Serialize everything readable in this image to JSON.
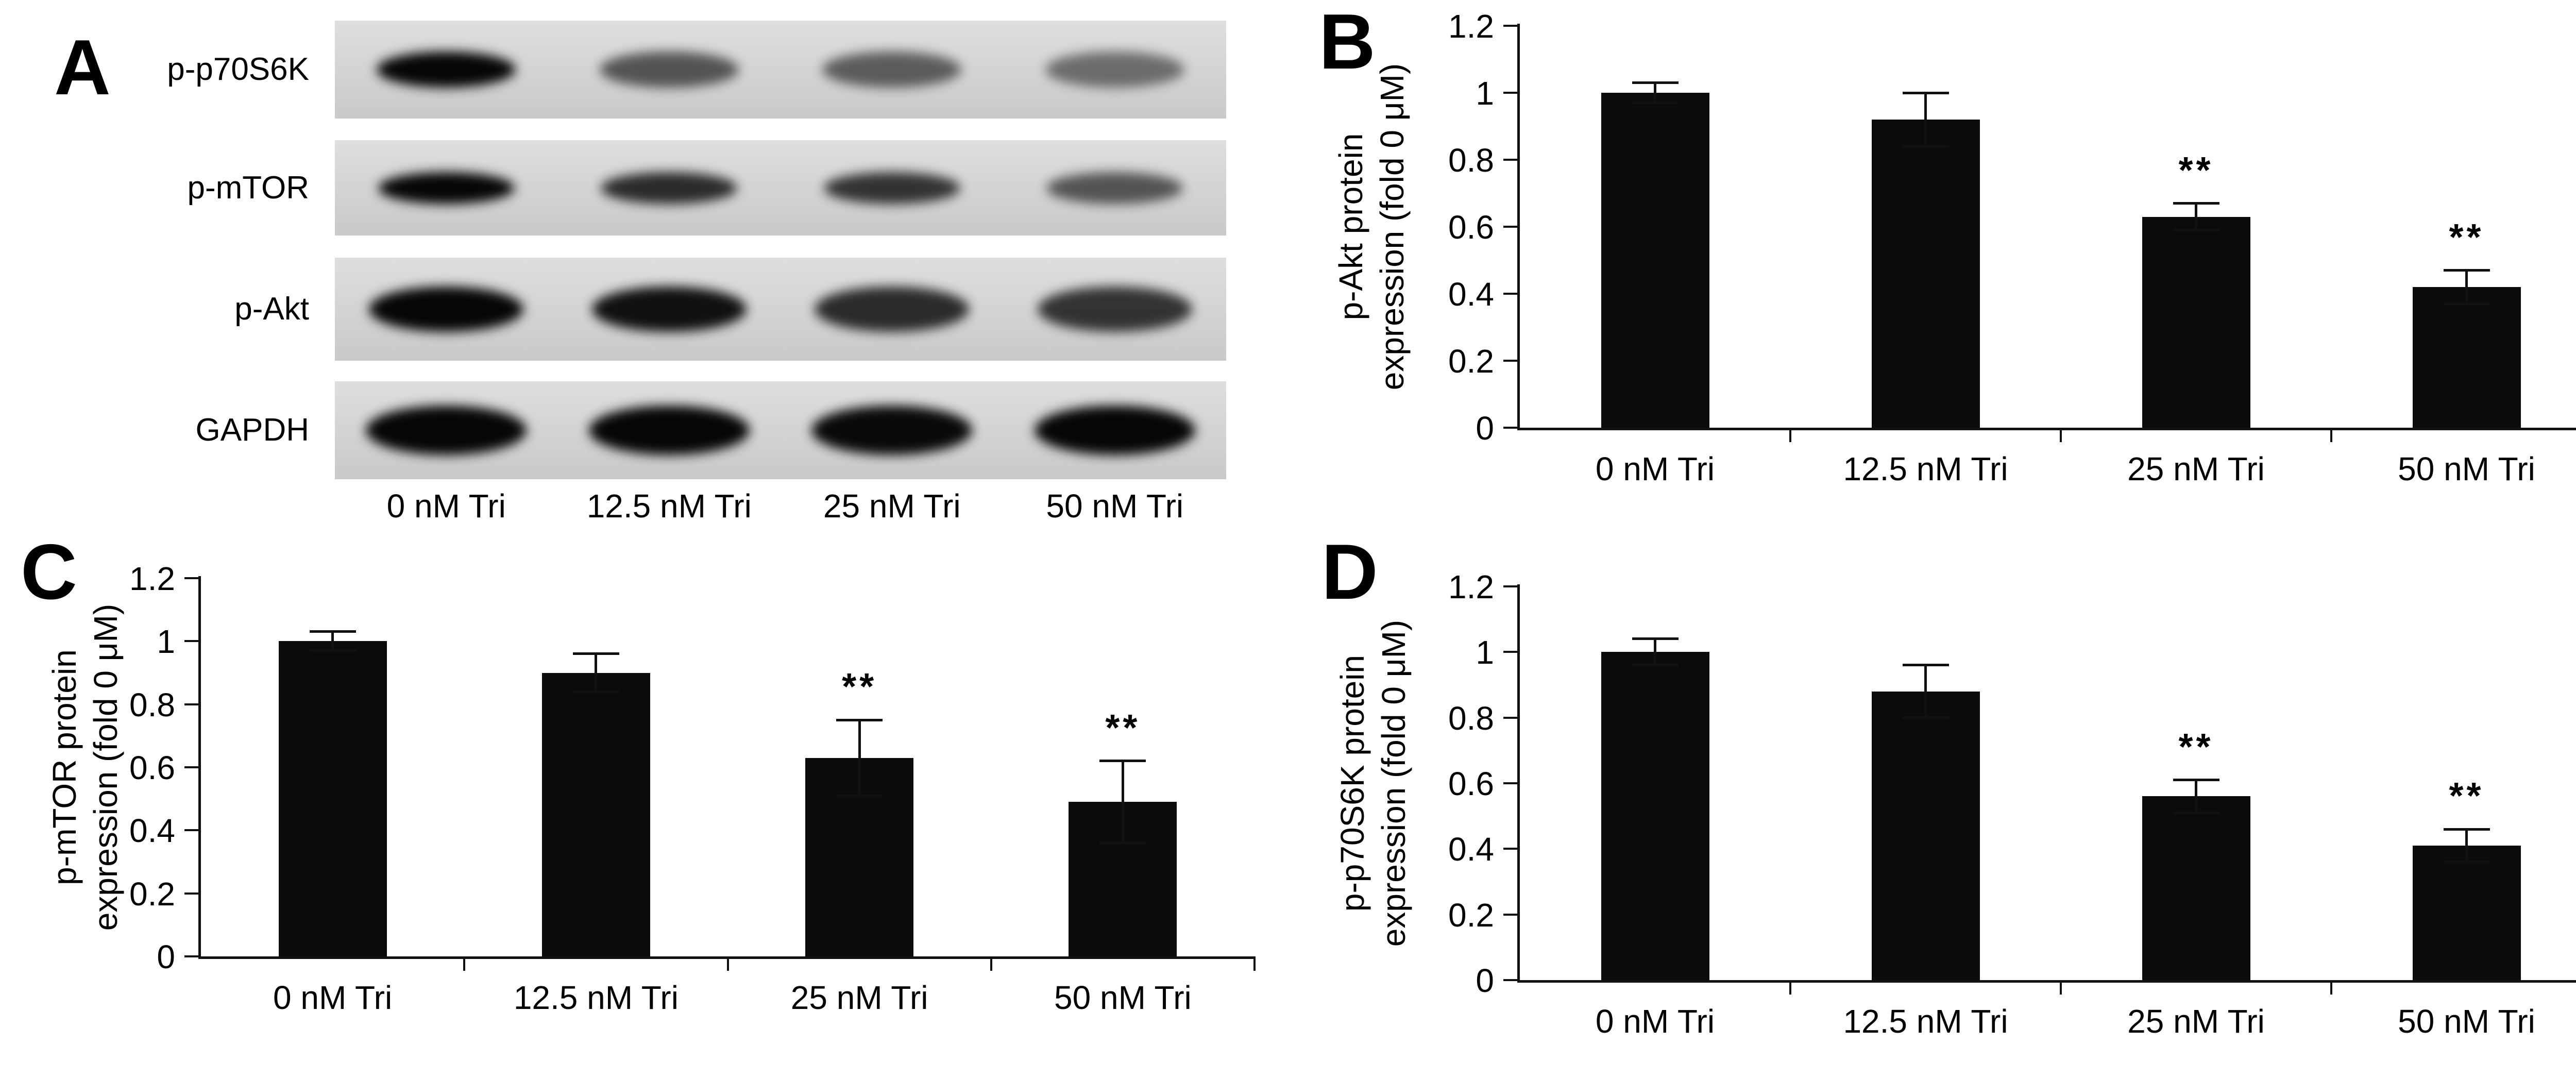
{
  "figure": {
    "panel_a": {
      "label": "A",
      "rows": [
        {
          "name": "p-p70S6K",
          "band_intensities": [
            1,
            0.62,
            0.58,
            0.5
          ]
        },
        {
          "name": "p-mTOR",
          "band_intensities": [
            1,
            0.82,
            0.78,
            0.62
          ]
        },
        {
          "name": "p-Akt",
          "band_intensities": [
            1,
            0.95,
            0.82,
            0.78
          ]
        },
        {
          "name": "GAPDH",
          "band_intensities": [
            1,
            1,
            0.98,
            1
          ]
        }
      ],
      "lanes": [
        "0 nM Tri",
        "12.5 nM Tri",
        "25 nM Tri",
        "50 nM Tri"
      ]
    },
    "panel_b": {
      "label": "B"
    },
    "panel_c": {
      "label": "C"
    },
    "panel_d": {
      "label": "D"
    }
  },
  "chart_data": [
    {
      "panel": "B",
      "type": "bar",
      "categories": [
        "0 nM Tri",
        "12.5 nM Tri",
        "25 nM Tri",
        "50 nM Tri"
      ],
      "values": [
        1.0,
        0.92,
        0.63,
        0.42
      ],
      "errors": [
        0.03,
        0.08,
        0.04,
        0.05
      ],
      "annotations": [
        "",
        "",
        "**",
        "**"
      ],
      "ylabel_line1": "p-Akt protein",
      "ylabel_line2": "expression (fold 0 μM)",
      "ylim": [
        0,
        1.2
      ],
      "yticks": [
        0,
        0.2,
        0.4,
        0.6,
        0.8,
        1,
        1.2
      ],
      "bar_color": "#0b0b0b",
      "grid": false,
      "legend": false
    },
    {
      "panel": "C",
      "type": "bar",
      "categories": [
        "0 nM Tri",
        "12.5 nM Tri",
        "25 nM Tri",
        "50 nM Tri"
      ],
      "values": [
        1.0,
        0.9,
        0.63,
        0.49
      ],
      "errors": [
        0.03,
        0.06,
        0.12,
        0.13
      ],
      "annotations": [
        "",
        "",
        "**",
        "**"
      ],
      "ylabel_line1": "p-mTOR protein",
      "ylabel_line2": "expression (fold 0 μM)",
      "ylim": [
        0,
        1.2
      ],
      "yticks": [
        0,
        0.2,
        0.4,
        0.6,
        0.8,
        1,
        1.2
      ],
      "bar_color": "#0b0b0b",
      "grid": false,
      "legend": false
    },
    {
      "panel": "D",
      "type": "bar",
      "categories": [
        "0 nM Tri",
        "12.5 nM Tri",
        "25 nM Tri",
        "50 nM Tri"
      ],
      "values": [
        1.0,
        0.88,
        0.56,
        0.41
      ],
      "errors": [
        0.04,
        0.08,
        0.05,
        0.05
      ],
      "annotations": [
        "",
        "",
        "**",
        "**"
      ],
      "ylabel_line1": "p-p70S6K protein",
      "ylabel_line2": "expression (fold 0 μM)",
      "ylim": [
        0,
        1.2
      ],
      "yticks": [
        0,
        0.2,
        0.4,
        0.6,
        0.8,
        1,
        1.2
      ],
      "bar_color": "#0b0b0b",
      "grid": false,
      "legend": false
    }
  ]
}
